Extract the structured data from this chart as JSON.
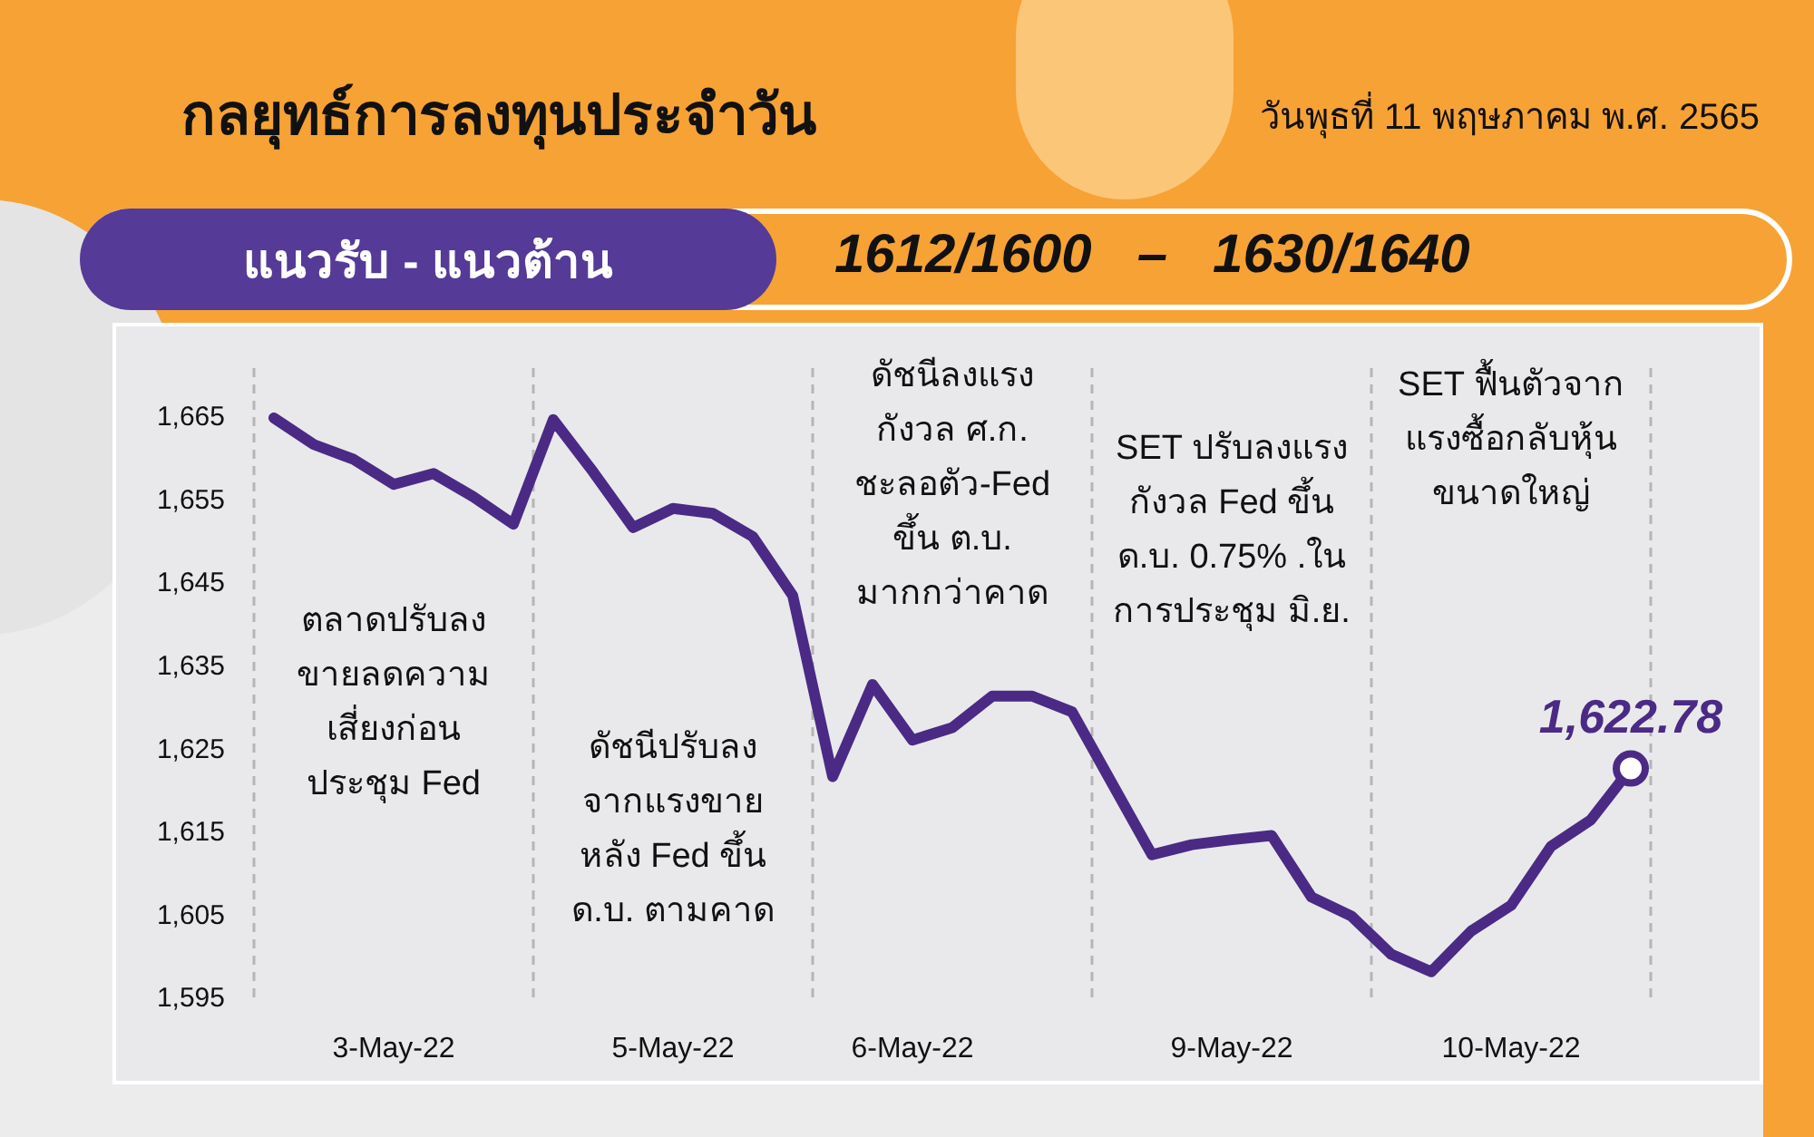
{
  "chart_data": {
    "type": "line",
    "title": "กลยุทธ์การลงทุนประจำวัน",
    "subtitle": "วันพุธที่ 11 พฤษภาคม พ.ศ. 2565",
    "categories": [
      null,
      null,
      null,
      "3-May-22",
      null,
      null,
      null,
      null,
      null,
      null,
      "5-May-22",
      null,
      null,
      null,
      null,
      null,
      "6-May-22",
      null,
      null,
      null,
      null,
      null,
      null,
      null,
      "9-May-22",
      null,
      null,
      null,
      null,
      null,
      null,
      "10-May-22",
      null,
      null,
      null
    ],
    "series": [
      {
        "color": "#4b2a85",
        "values": [
          1665,
          1661.8,
          1660,
          1657,
          1658.3,
          1655.5,
          1652.2,
          1664.8,
          1658.5,
          1651.8,
          1654.1,
          1653.5,
          1650.7,
          1643.6,
          1621.8,
          1632.9,
          1626.2,
          1627.7,
          1631.5,
          1631.5,
          1629.6,
          1621,
          1612.4,
          1613.6,
          1614.2,
          1614.7,
          1607.3,
          1605,
          1600.4,
          1598.3,
          1603.2,
          1606.3,
          1613.4,
          1616.6,
          1622.78
        ],
        "value_labels": [
          null,
          null,
          null,
          null,
          null,
          null,
          null,
          null,
          null,
          null,
          null,
          null,
          null,
          null,
          null,
          null,
          null,
          null,
          null,
          null,
          null,
          null,
          null,
          null,
          null,
          null,
          null,
          null,
          null,
          null,
          null,
          null,
          null,
          null,
          "1,622.78"
        ]
      }
    ],
    "ylim": [
      1595,
      1671
    ],
    "yticks": [
      {
        "value": 1595,
        "label": "1,595"
      },
      {
        "value": 1605,
        "label": "1,605"
      },
      {
        "value": 1615,
        "label": "1,615"
      },
      {
        "value": 1625,
        "label": "1,625"
      },
      {
        "value": 1635,
        "label": "1,635"
      },
      {
        "value": 1645,
        "label": "1,645"
      },
      {
        "value": 1655,
        "label": "1,655"
      },
      {
        "value": 1665,
        "label": "1,665"
      }
    ],
    "annotations": [
      "แนวรับ - แนวต้าน",
      "1612/1600   –   1630/1640",
      "ตลาดปรับลง\nขายลดความ\nเสี่ยงก่อน\nประชุม Fed",
      "ดัชนีปรับลง\nจากแรงขาย\nหลัง Fed ขึ้น\nด.บ. ตามคาด",
      "ดัชนีลงแรง\nกังวล ศ.ก.\nชะลอตัว-Fed\nขึ้น ต.บ.\nมากกว่าคาด",
      "SET ปรับลงแรง\nกังวล Fed ขึ้น\nด.บ. 0.75% .ใน\nการประชุม มิ.ย.",
      "SET ฟื้นตัวจาก\nแรงซื้อกลับหุ้น\nขนาดใหญ่"
    ],
    "legend": false,
    "grid": false,
    "line_style": "solid"
  }
}
